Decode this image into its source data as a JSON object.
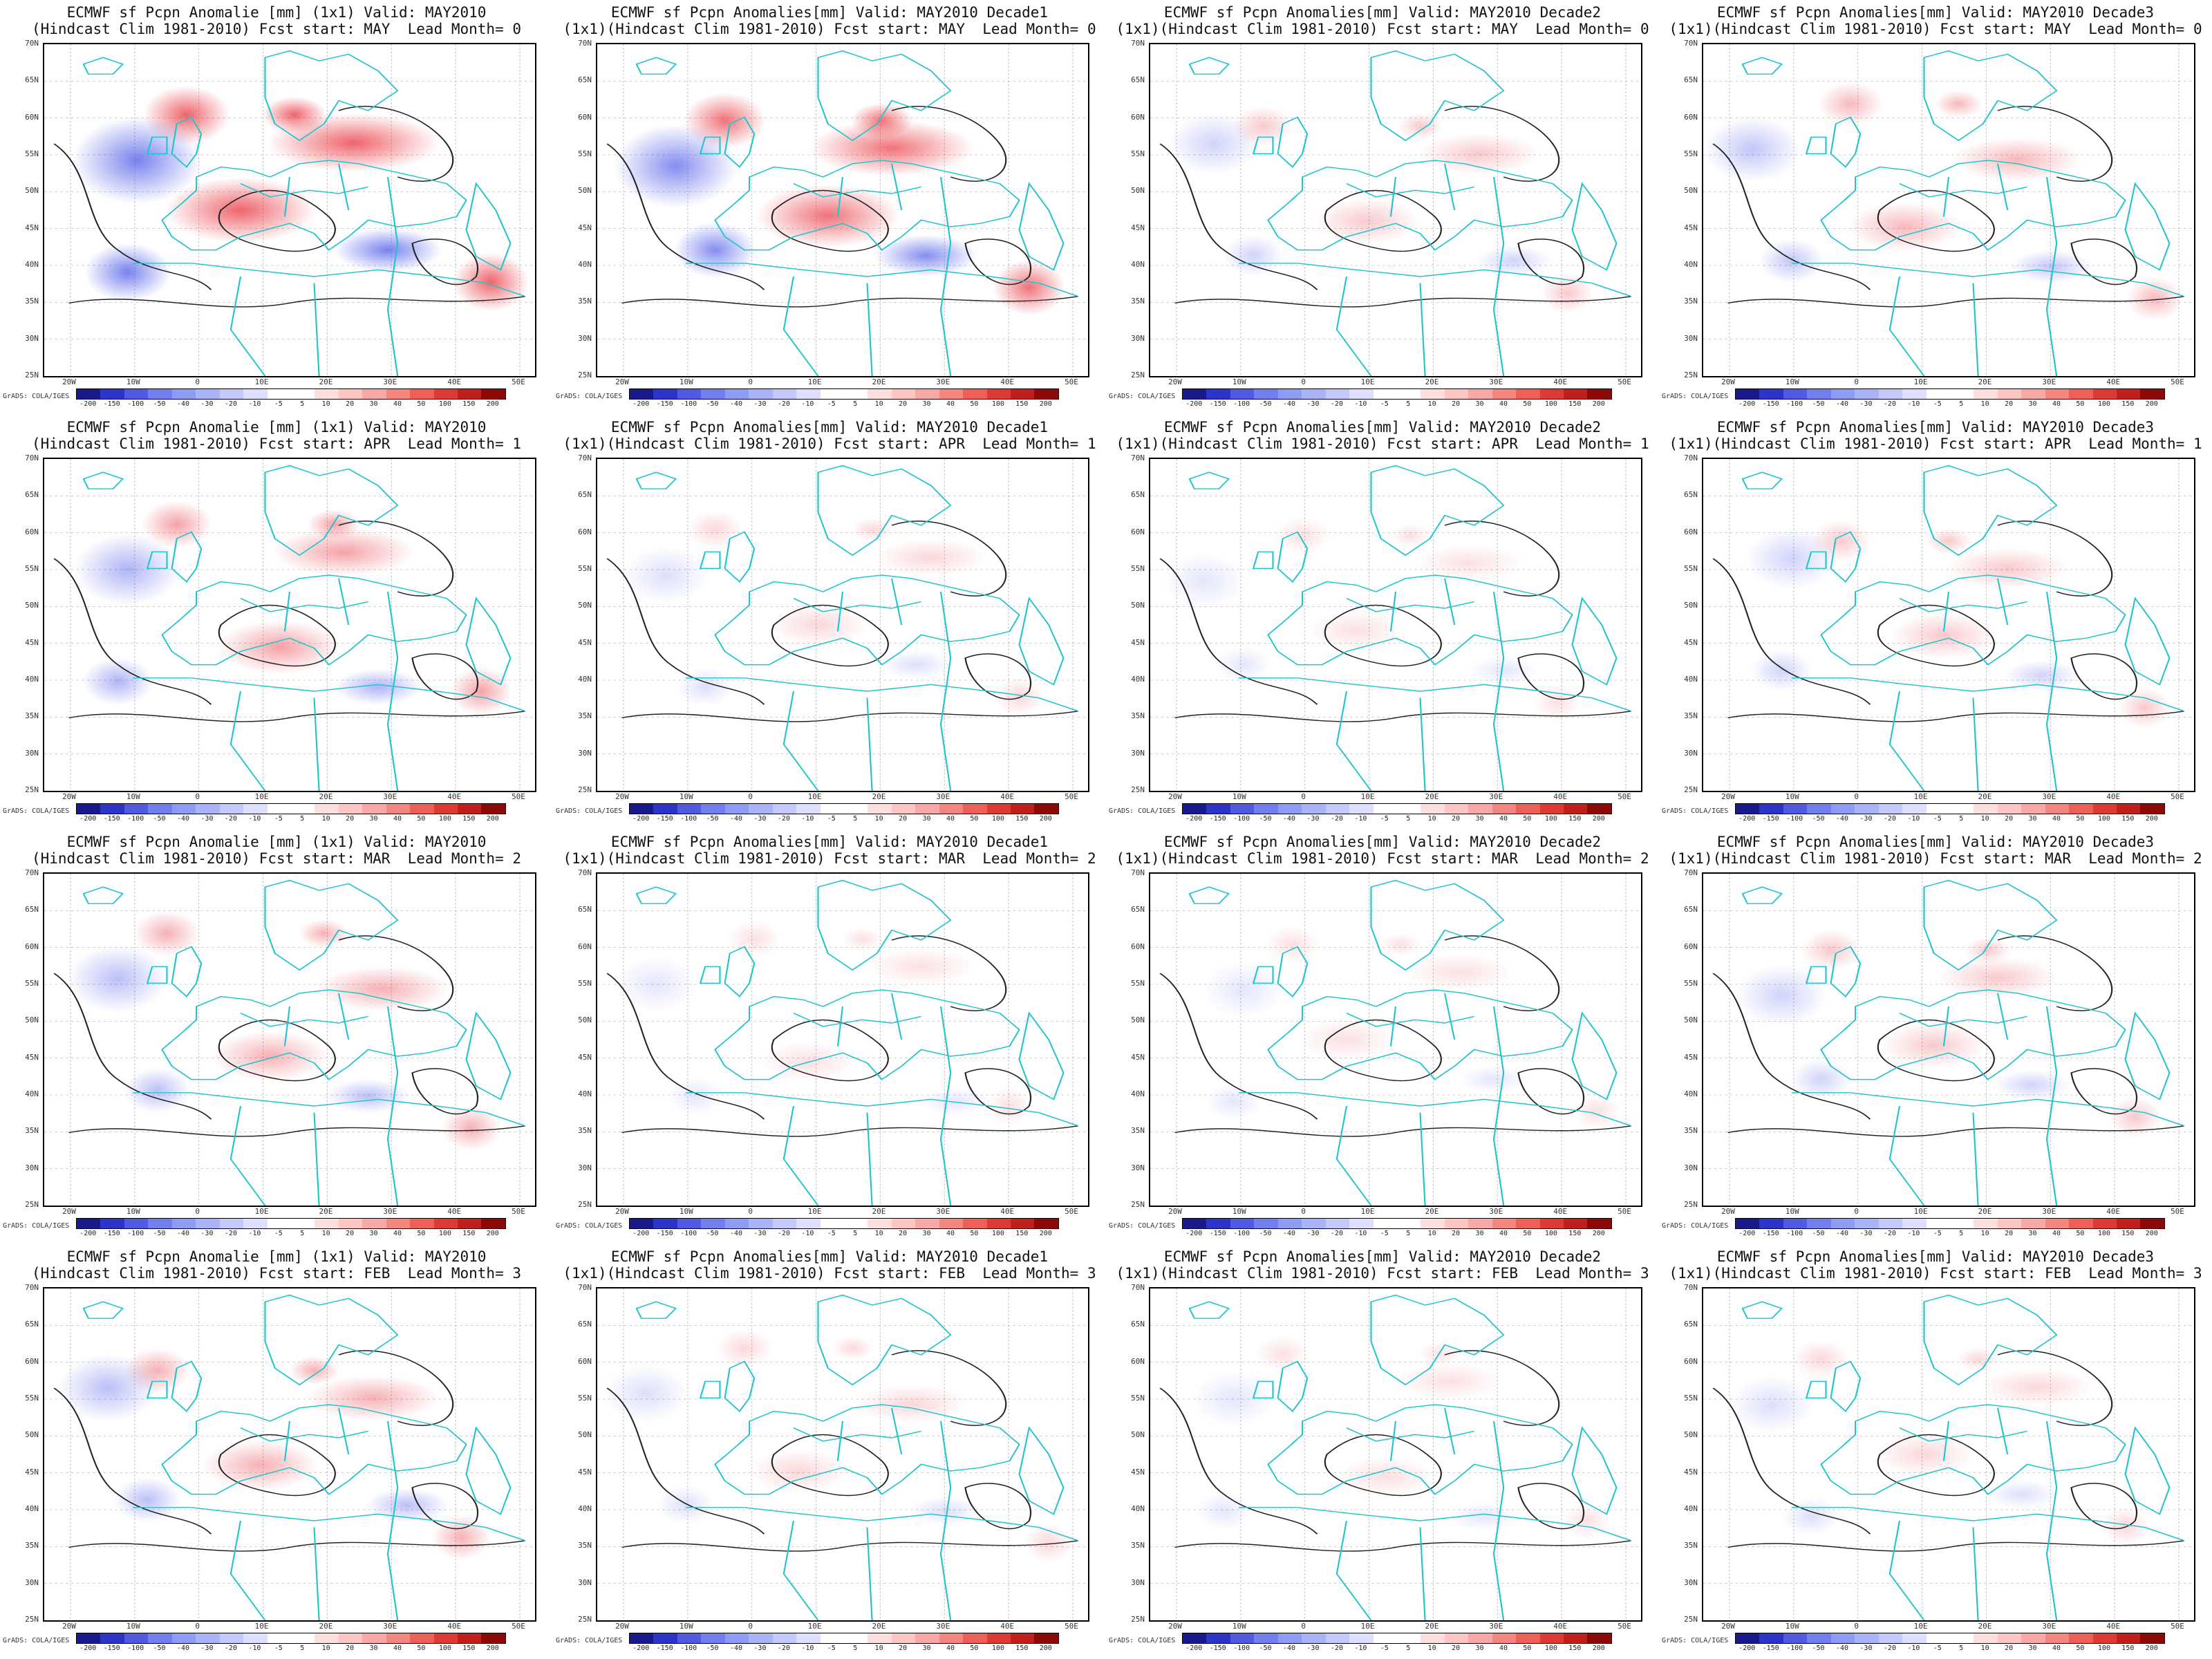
{
  "panels": [
    {
      "title1": "ECMWF sf Pcpn Anomalie [mm] (1x1) Valid: MAY2010",
      "title2": "(Hindcast Clim 1981-2010) Fcst start: MAY  Lead Month= 0",
      "intensity": 1.0
    },
    {
      "title1": "ECMWF sf Pcpn Anomalies[mm] Valid: MAY2010 Decade1",
      "title2": "(1x1)(Hindcast Clim 1981-2010) Fcst start: MAY  Lead Month= 0",
      "intensity": 0.9
    },
    {
      "title1": "ECMWF sf Pcpn Anomalies[mm] Valid: MAY2010 Decade2",
      "title2": "(1x1)(Hindcast Clim 1981-2010) Fcst start: MAY  Lead Month= 0",
      "intensity": 0.35
    },
    {
      "title1": "ECMWF sf Pcpn Anomalies[mm] Valid: MAY2010 Decade3",
      "title2": "(1x1)(Hindcast Clim 1981-2010) Fcst start: MAY  Lead Month= 0",
      "intensity": 0.45
    },
    {
      "title1": "ECMWF sf Pcpn Anomalie [mm] (1x1) Valid: MAY2010",
      "title2": "(Hindcast Clim 1981-2010) Fcst start: APR  Lead Month= 1",
      "intensity": 0.6
    },
    {
      "title1": "ECMWF sf Pcpn Anomalies[mm] Valid: MAY2010 Decade1",
      "title2": "(1x1)(Hindcast Clim 1981-2010) Fcst start: APR  Lead Month= 1",
      "intensity": 0.25
    },
    {
      "title1": "ECMWF sf Pcpn Anomalies[mm] Valid: MAY2010 Decade2",
      "title2": "(1x1)(Hindcast Clim 1981-2010) Fcst start: APR  Lead Month= 1",
      "intensity": 0.2
    },
    {
      "title1": "ECMWF sf Pcpn Anomalies[mm] Valid: MAY2010 Decade3",
      "title2": "(1x1)(Hindcast Clim 1981-2010) Fcst start: APR  Lead Month= 1",
      "intensity": 0.35
    },
    {
      "title1": "ECMWF sf Pcpn Anomalie [mm] (1x1) Valid: MAY2010",
      "title2": "(Hindcast Clim 1981-2010) Fcst start: MAR  Lead Month= 2",
      "intensity": 0.5
    },
    {
      "title1": "ECMWF sf Pcpn Anomalies[mm] Valid: MAY2010 Decade1",
      "title2": "(1x1)(Hindcast Clim 1981-2010) Fcst start: MAR  Lead Month= 2",
      "intensity": 0.2
    },
    {
      "title1": "ECMWF sf Pcpn Anomalies[mm] Valid: MAY2010 Decade2",
      "title2": "(1x1)(Hindcast Clim 1981-2010) Fcst start: MAR  Lead Month= 2",
      "intensity": 0.2
    },
    {
      "title1": "ECMWF sf Pcpn Anomalies[mm] Valid: MAY2010 Decade3",
      "title2": "(1x1)(Hindcast Clim 1981-2010) Fcst start: MAR  Lead Month= 2",
      "intensity": 0.35
    },
    {
      "title1": "ECMWF sf Pcpn Anomalie [mm] (1x1) Valid: MAY2010",
      "title2": "(Hindcast Clim 1981-2010) Fcst start: FEB  Lead Month= 3",
      "intensity": 0.5
    },
    {
      "title1": "ECMWF sf Pcpn Anomalies[mm] Valid: MAY2010 Decade1",
      "title2": "(1x1)(Hindcast Clim 1981-2010) Fcst start: FEB  Lead Month= 3",
      "intensity": 0.25
    },
    {
      "title1": "ECMWF sf Pcpn Anomalies[mm] Valid: MAY2010 Decade2",
      "title2": "(1x1)(Hindcast Clim 1981-2010) Fcst start: FEB  Lead Month= 3",
      "intensity": 0.2
    },
    {
      "title1": "ECMWF sf Pcpn Anomalies[mm] Valid: MAY2010 Decade3",
      "title2": "(1x1)(Hindcast Clim 1981-2010) Fcst start: FEB  Lead Month= 3",
      "intensity": 0.25
    }
  ],
  "lat_labels": [
    "70N",
    "65N",
    "60N",
    "55N",
    "50N",
    "45N",
    "40N",
    "35N",
    "30N",
    "25N"
  ],
  "lon_labels": [
    "20W",
    "10W",
    "0",
    "10E",
    "20E",
    "30E",
    "40E",
    "50E"
  ],
  "colorbar_labels": [
    "-200",
    "-150",
    "-100",
    "-50",
    "-40",
    "-30",
    "-20",
    "-10",
    "-5",
    "5",
    "10",
    "20",
    "30",
    "40",
    "50",
    "100",
    "150",
    "200"
  ],
  "colorbar_colors": [
    "#1a1a8c",
    "#2b35c8",
    "#4f5ce0",
    "#7280ee",
    "#8f9cf4",
    "#aab3f8",
    "#c4c9fb",
    "#dcdffd",
    "#ffffff",
    "#ffffff",
    "#fde0de",
    "#fbc6c3",
    "#f8a9a5",
    "#f4857f",
    "#ee5f58",
    "#dd3a33",
    "#c0201b",
    "#8c0a08"
  ],
  "credit": "GrADS: COLA/IGES",
  "colors": {
    "coast": "#22c4cc",
    "contour": "#222222",
    "pos": "#e8303a",
    "neg": "#4a58e8"
  }
}
